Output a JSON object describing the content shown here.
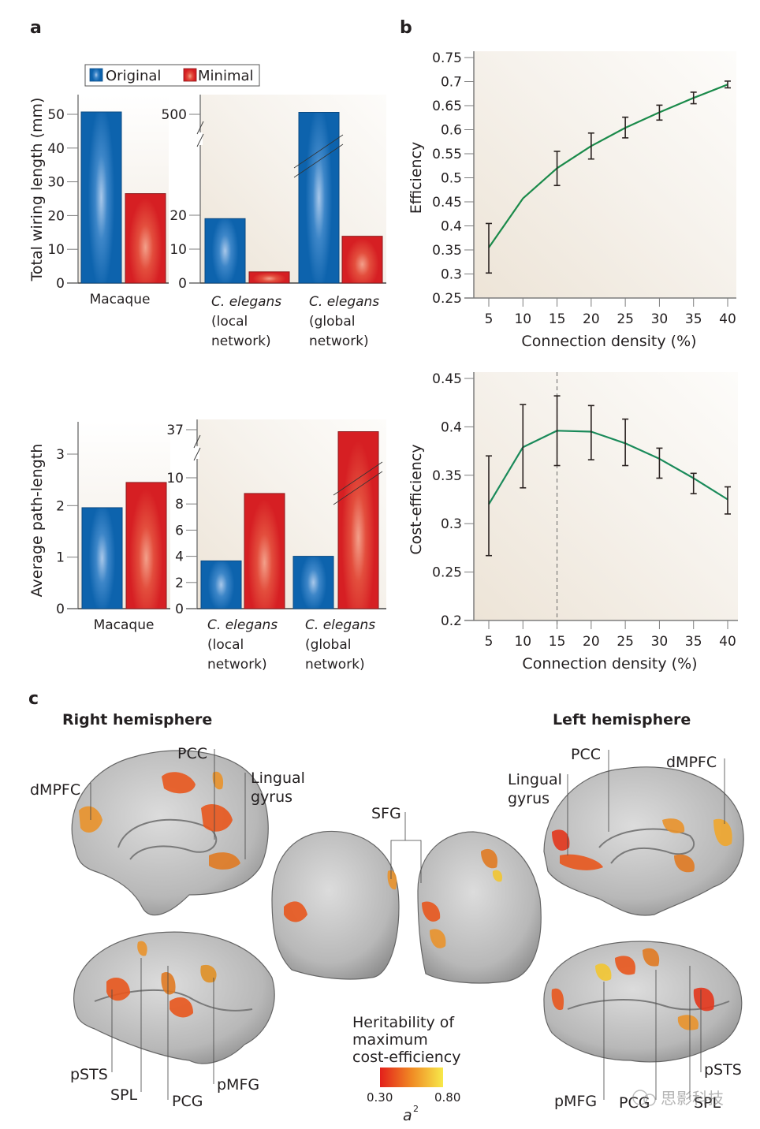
{
  "panels": {
    "a": {
      "label": "a",
      "legend": [
        {
          "name": "Original",
          "color": "#1a6fb5"
        },
        {
          "name": "Minimal",
          "color": "#d9262a"
        }
      ]
    },
    "b": {
      "label": "b"
    },
    "c": {
      "label": "c",
      "right_hemisphere_title": "Right hemisphere",
      "left_hemisphere_title": "Left hemisphere",
      "region_labels": {
        "right_medial": [
          "dMPFC",
          "PCC",
          "Lingual gyrus"
        ],
        "center": [
          "SFG"
        ],
        "right_lateral": [
          "pSTS",
          "SPL",
          "PCG",
          "pMFG"
        ],
        "left_medial": [
          "Lingual gyrus",
          "PCC",
          "dMPFC"
        ],
        "left_lateral": [
          "pMFG",
          "PCG",
          "SPL",
          "pSTS"
        ]
      },
      "colorbar": {
        "title_lines": [
          "Heritability of",
          "maximum",
          "cost-efficiency"
        ],
        "min_label": "0.30",
        "max_label": "0.80",
        "variable": "a",
        "variable_superscript": "2",
        "color_low": "#e3201b",
        "color_mid": "#f08a24",
        "color_high": "#f7e94a"
      }
    },
    "watermark": "思影科技"
  },
  "chart_data": [
    {
      "id": "a-wiring-macaque",
      "type": "bar",
      "ylabel": "Total wiring length (mm)",
      "categories": [
        "Macaque"
      ],
      "series": [
        {
          "name": "Original",
          "values": [
            50.7
          ]
        },
        {
          "name": "Minimal",
          "values": [
            26.5
          ]
        }
      ],
      "ylim": [
        0,
        55
      ],
      "yticks": [
        0,
        10,
        20,
        30,
        40,
        50
      ]
    },
    {
      "id": "a-wiring-celegans",
      "type": "bar",
      "ylabel": "",
      "categories": [
        {
          "species": "C. elegans",
          "detail": [
            "(local",
            "network)"
          ]
        },
        {
          "species": "C. elegans",
          "detail": [
            "(global",
            "network)"
          ]
        }
      ],
      "series": [
        {
          "name": "Original",
          "values": [
            19,
            505
          ]
        },
        {
          "name": "Minimal",
          "values": [
            3.3,
            13.8
          ]
        }
      ],
      "axis_break": true,
      "yticks": [
        0,
        10,
        20,
        500
      ]
    },
    {
      "id": "a-pathlength-macaque",
      "type": "bar",
      "ylabel": "Average path-length",
      "categories": [
        "Macaque"
      ],
      "series": [
        {
          "name": "Original",
          "values": [
            1.96
          ]
        },
        {
          "name": "Minimal",
          "values": [
            2.45
          ]
        }
      ],
      "ylim": [
        0,
        3.6
      ],
      "yticks": [
        0,
        1,
        2,
        3
      ]
    },
    {
      "id": "a-pathlength-celegans",
      "type": "bar",
      "ylabel": "",
      "categories": [
        {
          "species": "C. elegans",
          "detail": [
            "(local",
            "network)"
          ]
        },
        {
          "species": "C. elegans",
          "detail": [
            "(global",
            "network)"
          ]
        }
      ],
      "series": [
        {
          "name": "Original",
          "values": [
            3.65,
            4.0
          ]
        },
        {
          "name": "Minimal",
          "values": [
            8.8,
            36.5
          ]
        }
      ],
      "axis_break": true,
      "yticks": [
        0,
        2,
        4,
        6,
        8,
        10,
        37
      ]
    },
    {
      "id": "b-efficiency",
      "type": "line",
      "xlabel": "Connection density (%)",
      "ylabel": "Efficiency",
      "x": [
        5,
        10,
        15,
        20,
        25,
        30,
        35,
        40
      ],
      "series": [
        {
          "name": "Efficiency",
          "color": "#1a8a4a",
          "values": [
            0.355,
            0.457,
            0.52,
            0.566,
            0.604,
            0.636,
            0.666,
            0.694
          ],
          "error_low": [
            0.302,
            null,
            0.484,
            0.539,
            0.583,
            0.62,
            0.654,
            0.687
          ],
          "error_high": [
            0.405,
            null,
            0.555,
            0.593,
            0.626,
            0.651,
            0.678,
            0.701
          ]
        }
      ],
      "xlim": [
        2.5,
        41
      ],
      "ylim": [
        0.25,
        0.75
      ],
      "xticks": [
        5,
        10,
        15,
        20,
        25,
        30,
        35,
        40
      ],
      "yticks": [
        0.25,
        0.3,
        0.35,
        0.4,
        0.45,
        0.5,
        0.55,
        0.6,
        0.65,
        0.7,
        0.75
      ],
      "ytick_labels": [
        "0.25",
        "0.3",
        "0.35",
        "0.4",
        "0.45",
        "0.5",
        "0.55",
        "0.6",
        "0.65",
        "0.7",
        "0.75"
      ],
      "grid": false
    },
    {
      "id": "b-cost-efficiency",
      "type": "line",
      "xlabel": "Connection density (%)",
      "ylabel": "Cost-efficiency",
      "x": [
        5,
        10,
        15,
        20,
        25,
        30,
        35,
        40
      ],
      "series": [
        {
          "name": "Cost-efficiency",
          "color": "#1a8a5a",
          "values": [
            0.32,
            0.379,
            0.396,
            0.395,
            0.383,
            0.367,
            0.347,
            0.325
          ],
          "error_low": [
            0.267,
            0.337,
            0.36,
            0.366,
            0.36,
            0.347,
            0.331,
            0.31
          ],
          "error_high": [
            0.37,
            0.423,
            0.432,
            0.422,
            0.408,
            0.378,
            0.352,
            0.338
          ]
        }
      ],
      "xlim": [
        2.5,
        41
      ],
      "ylim": [
        0.2,
        0.45
      ],
      "xticks": [
        5,
        10,
        15,
        20,
        25,
        30,
        35,
        40
      ],
      "yticks": [
        0.2,
        0.25,
        0.3,
        0.35,
        0.4,
        0.45
      ],
      "ytick_labels": [
        "0.2",
        "0.25",
        "0.3",
        "0.35",
        "0.4",
        "0.45"
      ],
      "reference_line_x": 15,
      "grid": false
    }
  ]
}
